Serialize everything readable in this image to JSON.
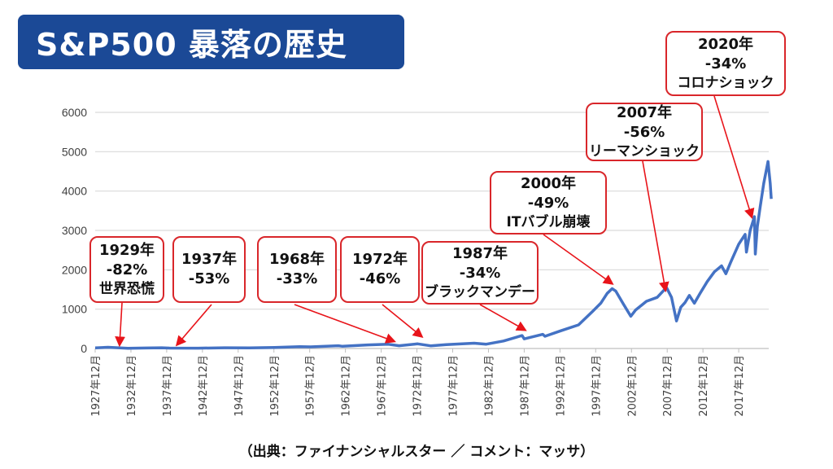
{
  "title": "S&P500 暴落の歴史",
  "footer": "（出典：ファイナンシャルスター ／ コメント：マッサ）",
  "chart_data": {
    "type": "line",
    "title": "S&P500 暴落の歴史",
    "xlabel": "",
    "ylabel": "",
    "ylim": [
      0,
      6000
    ],
    "xlim": [
      1927.9,
      2022.5
    ],
    "yticks": [
      "0",
      "1000",
      "2000",
      "3000",
      "4000",
      "5000",
      "6000"
    ],
    "xtick_labels": [
      "1927年12月",
      "1932年12月",
      "1937年12月",
      "1942年12月",
      "1947年12月",
      "1952年12月",
      "1957年12月",
      "1962年12月",
      "1967年12月",
      "1972年12月",
      "1977年12月",
      "1982年12月",
      "1987年12月",
      "1992年12月",
      "1997年12月",
      "2002年12月",
      "2007年12月",
      "2012年12月",
      "2017年12月"
    ],
    "grid": true,
    "color": "#4472c4",
    "series": [
      {
        "name": "S&P500",
        "x": [
          1927.9,
          1929.7,
          1932.5,
          1935,
          1937.2,
          1938.3,
          1942.3,
          1946,
          1949.5,
          1953,
          1956.5,
          1958,
          1961.9,
          1962.5,
          1966,
          1968.9,
          1970.4,
          1973,
          1974.8,
          1977,
          1980.9,
          1982.6,
          1985,
          1987.6,
          1987.9,
          1990.5,
          1990.8,
          1993,
          1995.5,
          1997.5,
          1998.6,
          1999.5,
          2000.2,
          2000.7,
          2001.7,
          2002.8,
          2003.5,
          2005,
          2006.5,
          2007.8,
          2008.5,
          2009.2,
          2009.8,
          2010.4,
          2011,
          2011.7,
          2012.5,
          2013.5,
          2014.5,
          2015.5,
          2016.1,
          2016.8,
          2017.9,
          2018.8,
          2018.98,
          2019.5,
          2020.1,
          2020.22,
          2020.5,
          2020.9,
          2021.4,
          2021.99,
          2022.3,
          2022.45
        ],
        "y": [
          17,
          31,
          5,
          12,
          18,
          10,
          8,
          18,
          15,
          25,
          48,
          42,
          70,
          55,
          90,
          108,
          70,
          118,
          68,
          98,
          135,
          110,
          190,
          330,
          245,
          360,
          310,
          450,
          600,
          950,
          1150,
          1400,
          1520,
          1460,
          1150,
          820,
          980,
          1200,
          1300,
          1550,
          1300,
          700,
          1050,
          1170,
          1350,
          1150,
          1400,
          1700,
          1950,
          2100,
          1900,
          2200,
          2650,
          2900,
          2450,
          3000,
          3350,
          2400,
          3100,
          3600,
          4200,
          4750,
          4200,
          3800
        ]
      }
    ],
    "annotations": [
      {
        "year": "1929年",
        "change": "-82%",
        "event": "世界恐慌"
      },
      {
        "year": "1937年",
        "change": "-53%",
        "event": ""
      },
      {
        "year": "1968年",
        "change": "-33%",
        "event": ""
      },
      {
        "year": "1972年",
        "change": "-46%",
        "event": ""
      },
      {
        "year": "1987年",
        "change": "-34%",
        "event": "ブラックマンデー"
      },
      {
        "year": "2000年",
        "change": "-49%",
        "event": "ITバブル崩壊"
      },
      {
        "year": "2007年",
        "change": "-56%",
        "event": "リーマンショック"
      },
      {
        "year": "2020年",
        "change": "-34%",
        "event": "コロナショック"
      }
    ]
  }
}
